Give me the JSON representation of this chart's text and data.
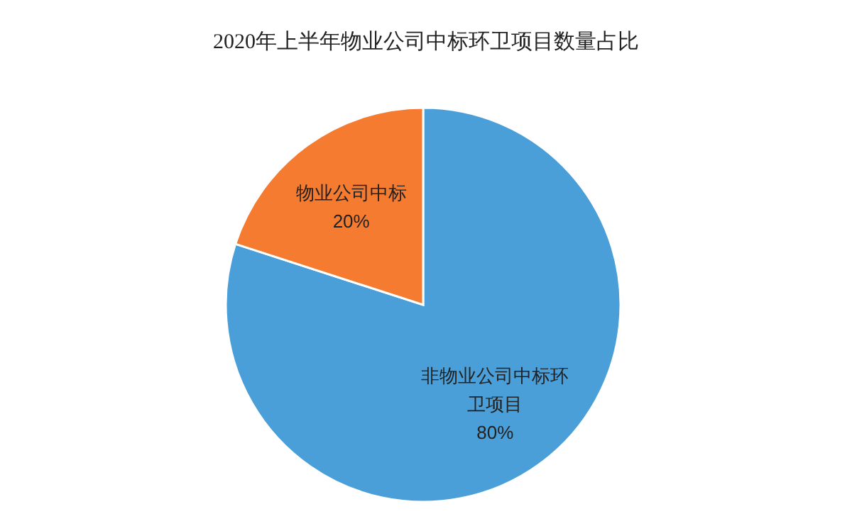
{
  "chart_data": {
    "type": "pie",
    "title": "2020年上半年物业公司中标环卫项目数量占比",
    "categories": [
      "非物业公司中标环卫项目",
      "物业公司中标"
    ],
    "values": [
      80,
      20
    ],
    "colors": [
      "#4a9fd8",
      "#f47b30"
    ],
    "value_labels": [
      "80%",
      "20%"
    ]
  }
}
